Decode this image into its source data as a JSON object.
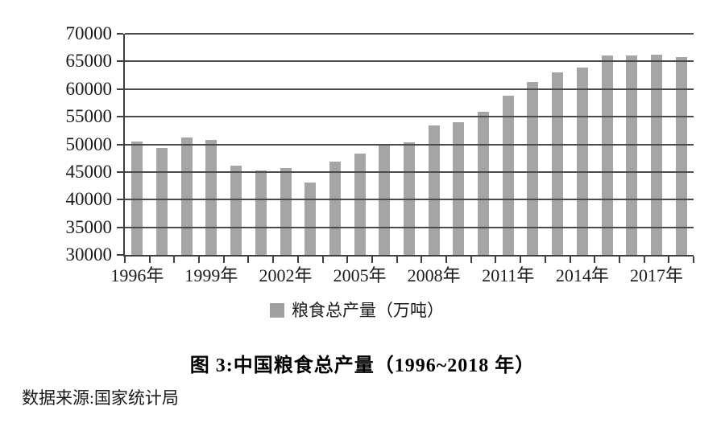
{
  "figure": {
    "title": "图 3:中国粮食总产量（1996~2018 年）",
    "source": "数据来源:国家统计局"
  },
  "legend": {
    "label": "粮食总产量（万吨）"
  },
  "colors": {
    "bar": "#a5a5a5",
    "legend_swatch": "#a0a0a0",
    "gridline": "#4a4a4a",
    "axis": "#3f3f3f",
    "text": "#1a1a1a",
    "background": "#ffffff"
  },
  "chart_data": {
    "type": "bar",
    "title": "图 3:中国粮食总产量（1996~2018 年）",
    "series_name": "粮食总产量（万吨）",
    "xlabel": "",
    "ylabel": "",
    "categories": [
      "1996",
      "1997",
      "1998",
      "1999",
      "2000",
      "2001",
      "2002",
      "2003",
      "2004",
      "2005",
      "2006",
      "2007",
      "2008",
      "2009",
      "2010",
      "2011",
      "2012",
      "2013",
      "2014",
      "2015",
      "2016",
      "2017",
      "2018"
    ],
    "values": [
      50454,
      49417,
      51230,
      50839,
      46218,
      45264,
      45706,
      43070,
      46947,
      48402,
      49804,
      50413,
      53434,
      53941,
      55911,
      58849,
      61223,
      63048,
      63965,
      66060,
      66044,
      66161,
      65789
    ],
    "ylim": [
      30000,
      70000
    ],
    "yticks": [
      30000,
      35000,
      40000,
      45000,
      50000,
      55000,
      60000,
      65000,
      70000
    ],
    "ytick_labels": [
      "30000",
      "35000",
      "40000",
      "45000",
      "50000",
      "55000",
      "60000",
      "65000",
      "70000"
    ],
    "xtick_labels": [
      "1996年",
      "1999年",
      "2002年",
      "2005年",
      "2008年",
      "2011年",
      "2014年",
      "2017年"
    ],
    "xtick_label_interval": 3,
    "year_suffix": "年",
    "grid": true,
    "gridlines_over_bars": true,
    "legend_position": "bottom",
    "bar_color": "#a5a5a5"
  }
}
